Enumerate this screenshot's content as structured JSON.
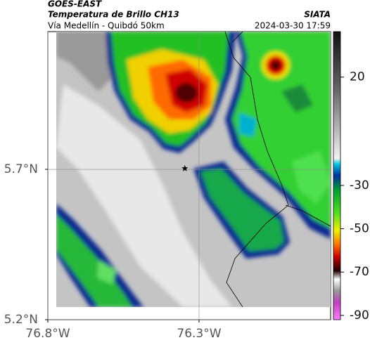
{
  "header": {
    "title": "GOES-EAST",
    "subtitle": "Temperatura de Brillo CH13",
    "route": "Vía Medellín - Quibdó 50km",
    "source": "SIATA",
    "timestamp": "2024-03-30 17:59"
  },
  "map": {
    "lon_range": [
      -76.8,
      -75.865
    ],
    "lat_range": [
      5.2,
      6.158
    ],
    "lon_ticks": [
      {
        "value": -76.8,
        "label": "76.8°W"
      },
      {
        "value": -76.3,
        "label": "76.3°W"
      }
    ],
    "lat_ticks": [
      {
        "value": 5.7,
        "label": "5.7°N"
      },
      {
        "value": 5.2,
        "label": "5.2°N"
      }
    ],
    "marker": {
      "lon": -76.347,
      "lat": 5.703
    }
  },
  "colorbar": {
    "range": [
      -92,
      41
    ],
    "ticks": [
      20,
      -30,
      -50,
      -70,
      -90
    ]
  }
}
